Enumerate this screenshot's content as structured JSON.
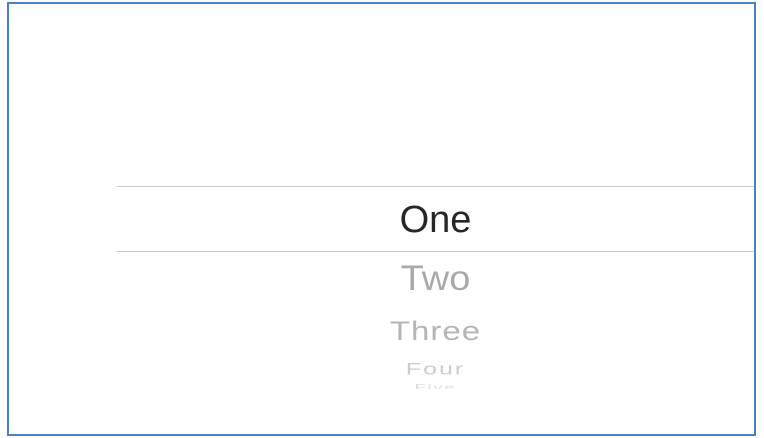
{
  "picker": {
    "options": [
      "One",
      "Two",
      "Three",
      "Four",
      "Five"
    ],
    "selected_value": "One"
  },
  "colors": {
    "frame_border": "#4a82c8",
    "selected_text": "#262626",
    "unselected_text": "#a9a9a9",
    "divider": "#c9c9c9"
  }
}
